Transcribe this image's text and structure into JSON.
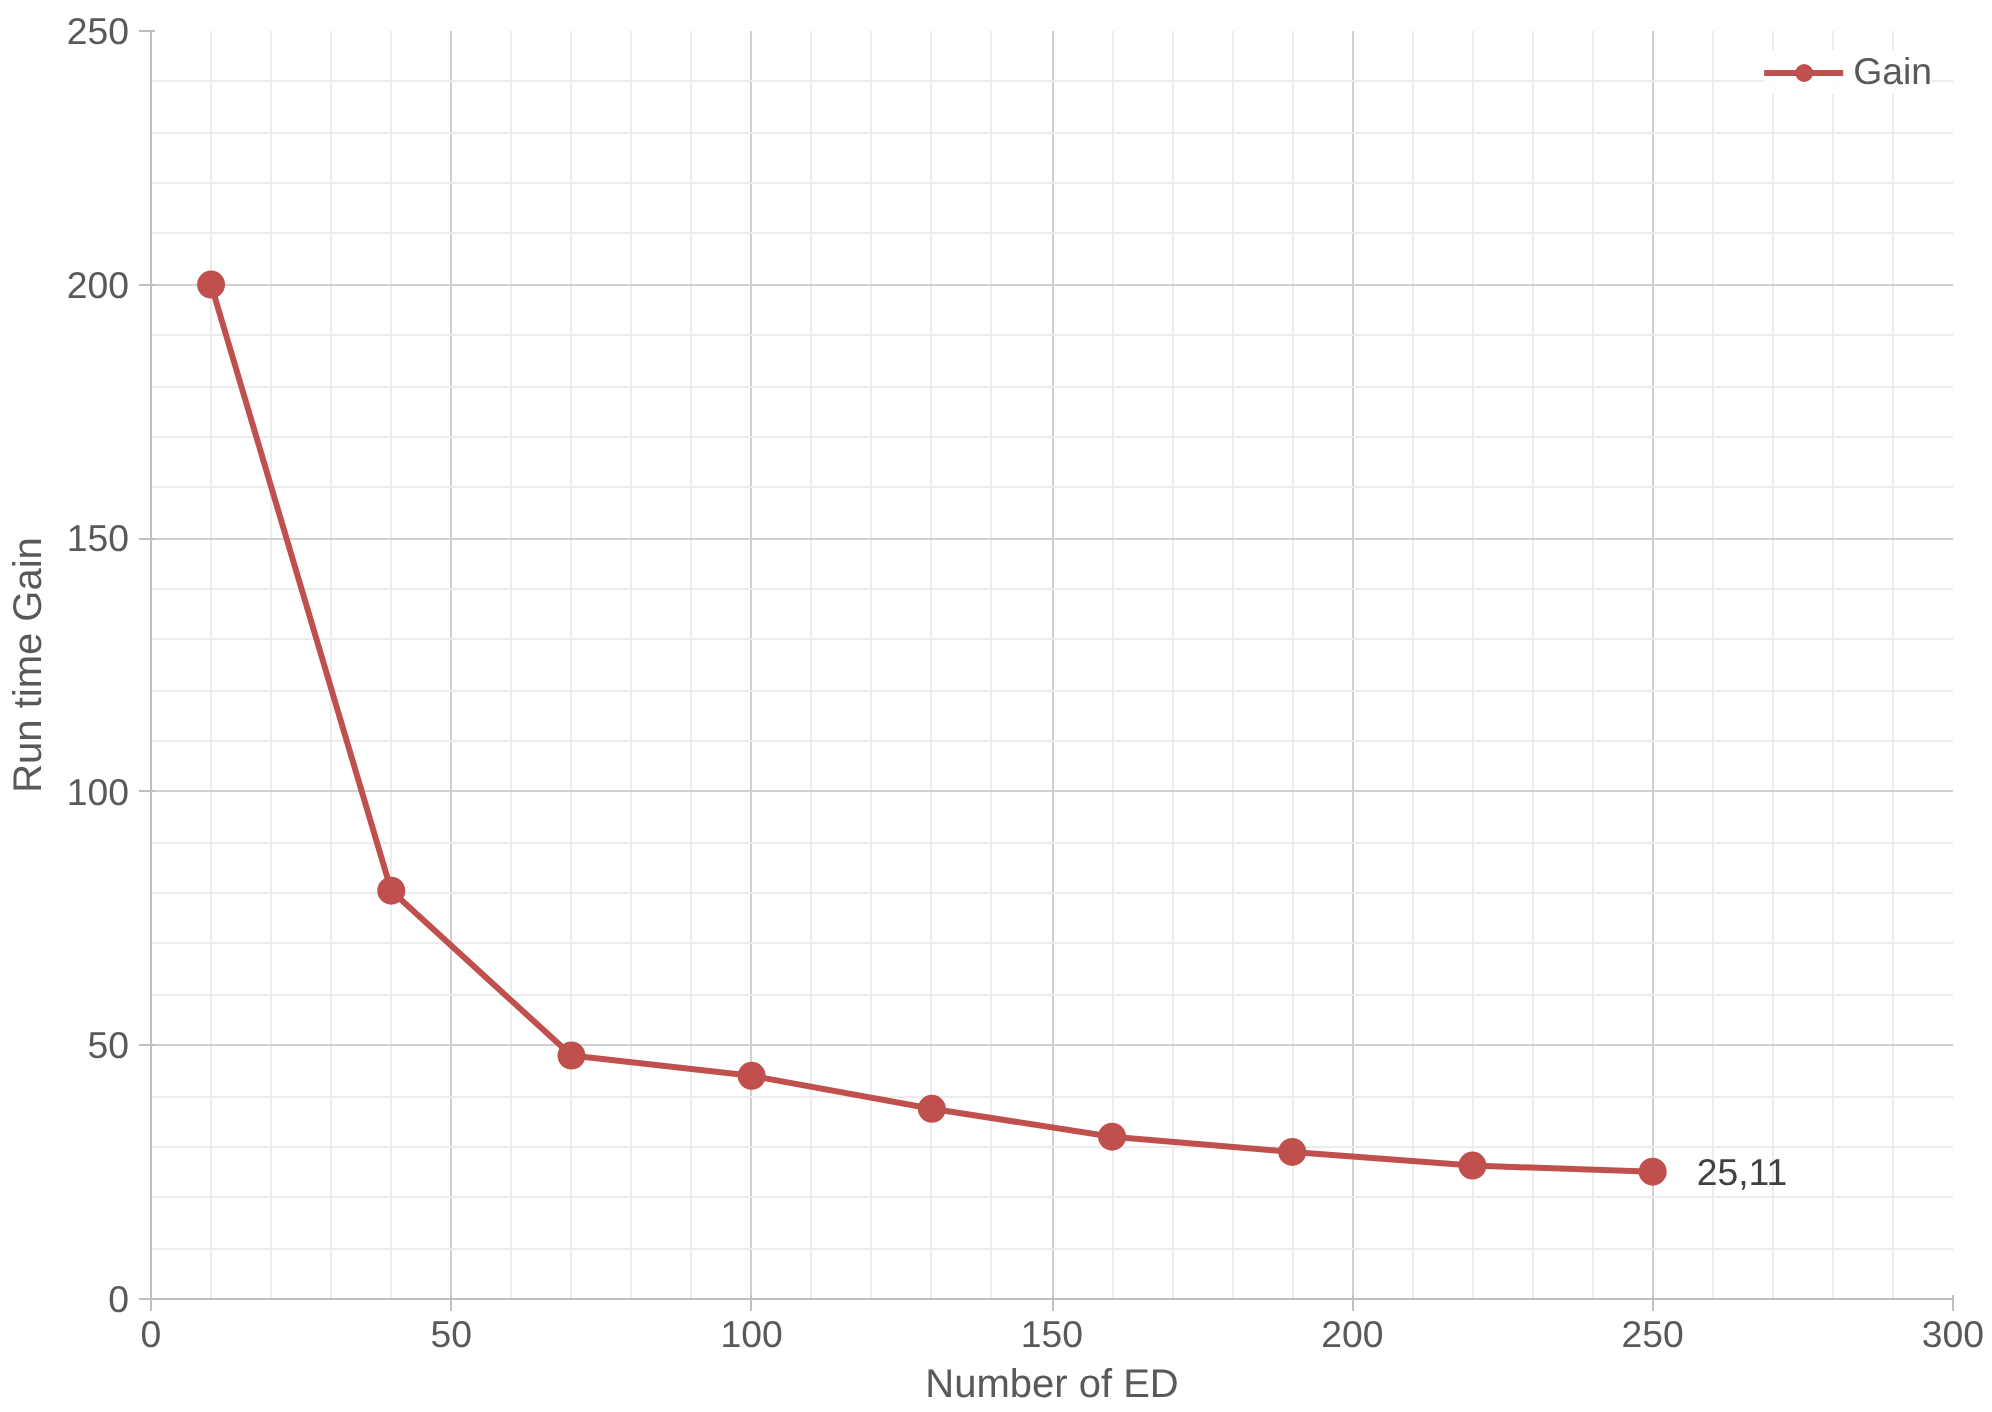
{
  "chart_data": {
    "type": "line",
    "xlabel": "Number of ED",
    "ylabel": "Run time Gain",
    "x": [
      10,
      40,
      70,
      100,
      130,
      160,
      190,
      220,
      250
    ],
    "series": [
      {
        "name": "Gain",
        "color": "#c0504d",
        "values": [
          200,
          80.5,
          48,
          44,
          37.5,
          32,
          29,
          26.3,
          25.11
        ],
        "value_labels": [
          null,
          null,
          null,
          null,
          null,
          null,
          null,
          null,
          "25,11"
        ]
      }
    ],
    "xlim": [
      0,
      300
    ],
    "ylim": [
      0,
      250
    ],
    "xticks": [
      0,
      50,
      100,
      150,
      200,
      250,
      300
    ],
    "yticks": [
      0,
      50,
      100,
      150,
      200,
      250
    ],
    "grid": true,
    "legend": "top right",
    "marker": "circle",
    "line_style": "solid"
  }
}
